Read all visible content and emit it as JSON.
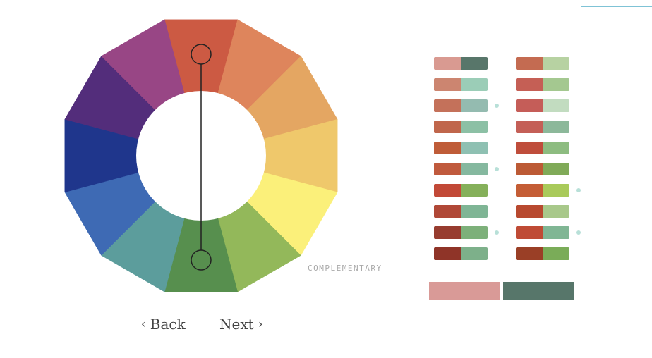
{
  "wheel": {
    "segments": [
      {
        "name": "red-orange",
        "color": "#cc5a43"
      },
      {
        "name": "orange",
        "color": "#de855c"
      },
      {
        "name": "light-orange",
        "color": "#e4a662"
      },
      {
        "name": "yellow-orange",
        "color": "#efc86b"
      },
      {
        "name": "yellow",
        "color": "#fbf07a"
      },
      {
        "name": "yellow-green",
        "color": "#93b85a"
      },
      {
        "name": "green",
        "color": "#578f4e"
      },
      {
        "name": "teal",
        "color": "#5c9d9c"
      },
      {
        "name": "light-blue",
        "color": "#3e6ab4"
      },
      {
        "name": "blue",
        "color": "#1f368c"
      },
      {
        "name": "purple",
        "color": "#532d7b"
      },
      {
        "name": "magenta-purple",
        "color": "#984685"
      }
    ],
    "handle_color": "#222222"
  },
  "harmony_label": "COMPLEMENTARY",
  "nav": {
    "back_label": "Back",
    "next_label": "Next",
    "back_icon": "‹",
    "next_icon": "›"
  },
  "palette": {
    "left_column": [
      {
        "a": "#d99a91",
        "b": "#58766a",
        "dot": false
      },
      {
        "a": "#cc8570",
        "b": "#9bcdb7",
        "dot": false
      },
      {
        "a": "#c4715a",
        "b": "#94bbb0",
        "dot": true
      },
      {
        "a": "#c0664b",
        "b": "#8cc0a5",
        "dot": false
      },
      {
        "a": "#bf5c38",
        "b": "#8ec0b2",
        "dot": false
      },
      {
        "a": "#c05a3d",
        "b": "#85b89f",
        "dot": true
      },
      {
        "a": "#c24937",
        "b": "#85b05a",
        "dot": false
      },
      {
        "a": "#b04837",
        "b": "#7fb595",
        "dot": false
      },
      {
        "a": "#973c2f",
        "b": "#7db07a",
        "dot": true
      },
      {
        "a": "#8f3428",
        "b": "#7db08a",
        "dot": false
      }
    ],
    "right_column": [
      {
        "a": "#c46b51",
        "b": "#b7d2a2",
        "dot": false
      },
      {
        "a": "#c55f55",
        "b": "#a4c890",
        "dot": false
      },
      {
        "a": "#c55d58",
        "b": "#c2dcc0",
        "dot": false
      },
      {
        "a": "#c45f57",
        "b": "#8cb89a",
        "dot": false
      },
      {
        "a": "#bf4d3b",
        "b": "#8dbc80",
        "dot": false
      },
      {
        "a": "#bc5a35",
        "b": "#80aa58",
        "dot": false
      },
      {
        "a": "#c45d35",
        "b": "#a9ca5a",
        "dot": true
      },
      {
        "a": "#b8492f",
        "b": "#a8c88a",
        "dot": false
      },
      {
        "a": "#bf4b35",
        "b": "#80b694",
        "dot": true
      },
      {
        "a": "#9a3f26",
        "b": "#7aac58",
        "dot": false
      }
    ],
    "selected": {
      "a": "#d99a97",
      "b": "#57766a"
    }
  }
}
